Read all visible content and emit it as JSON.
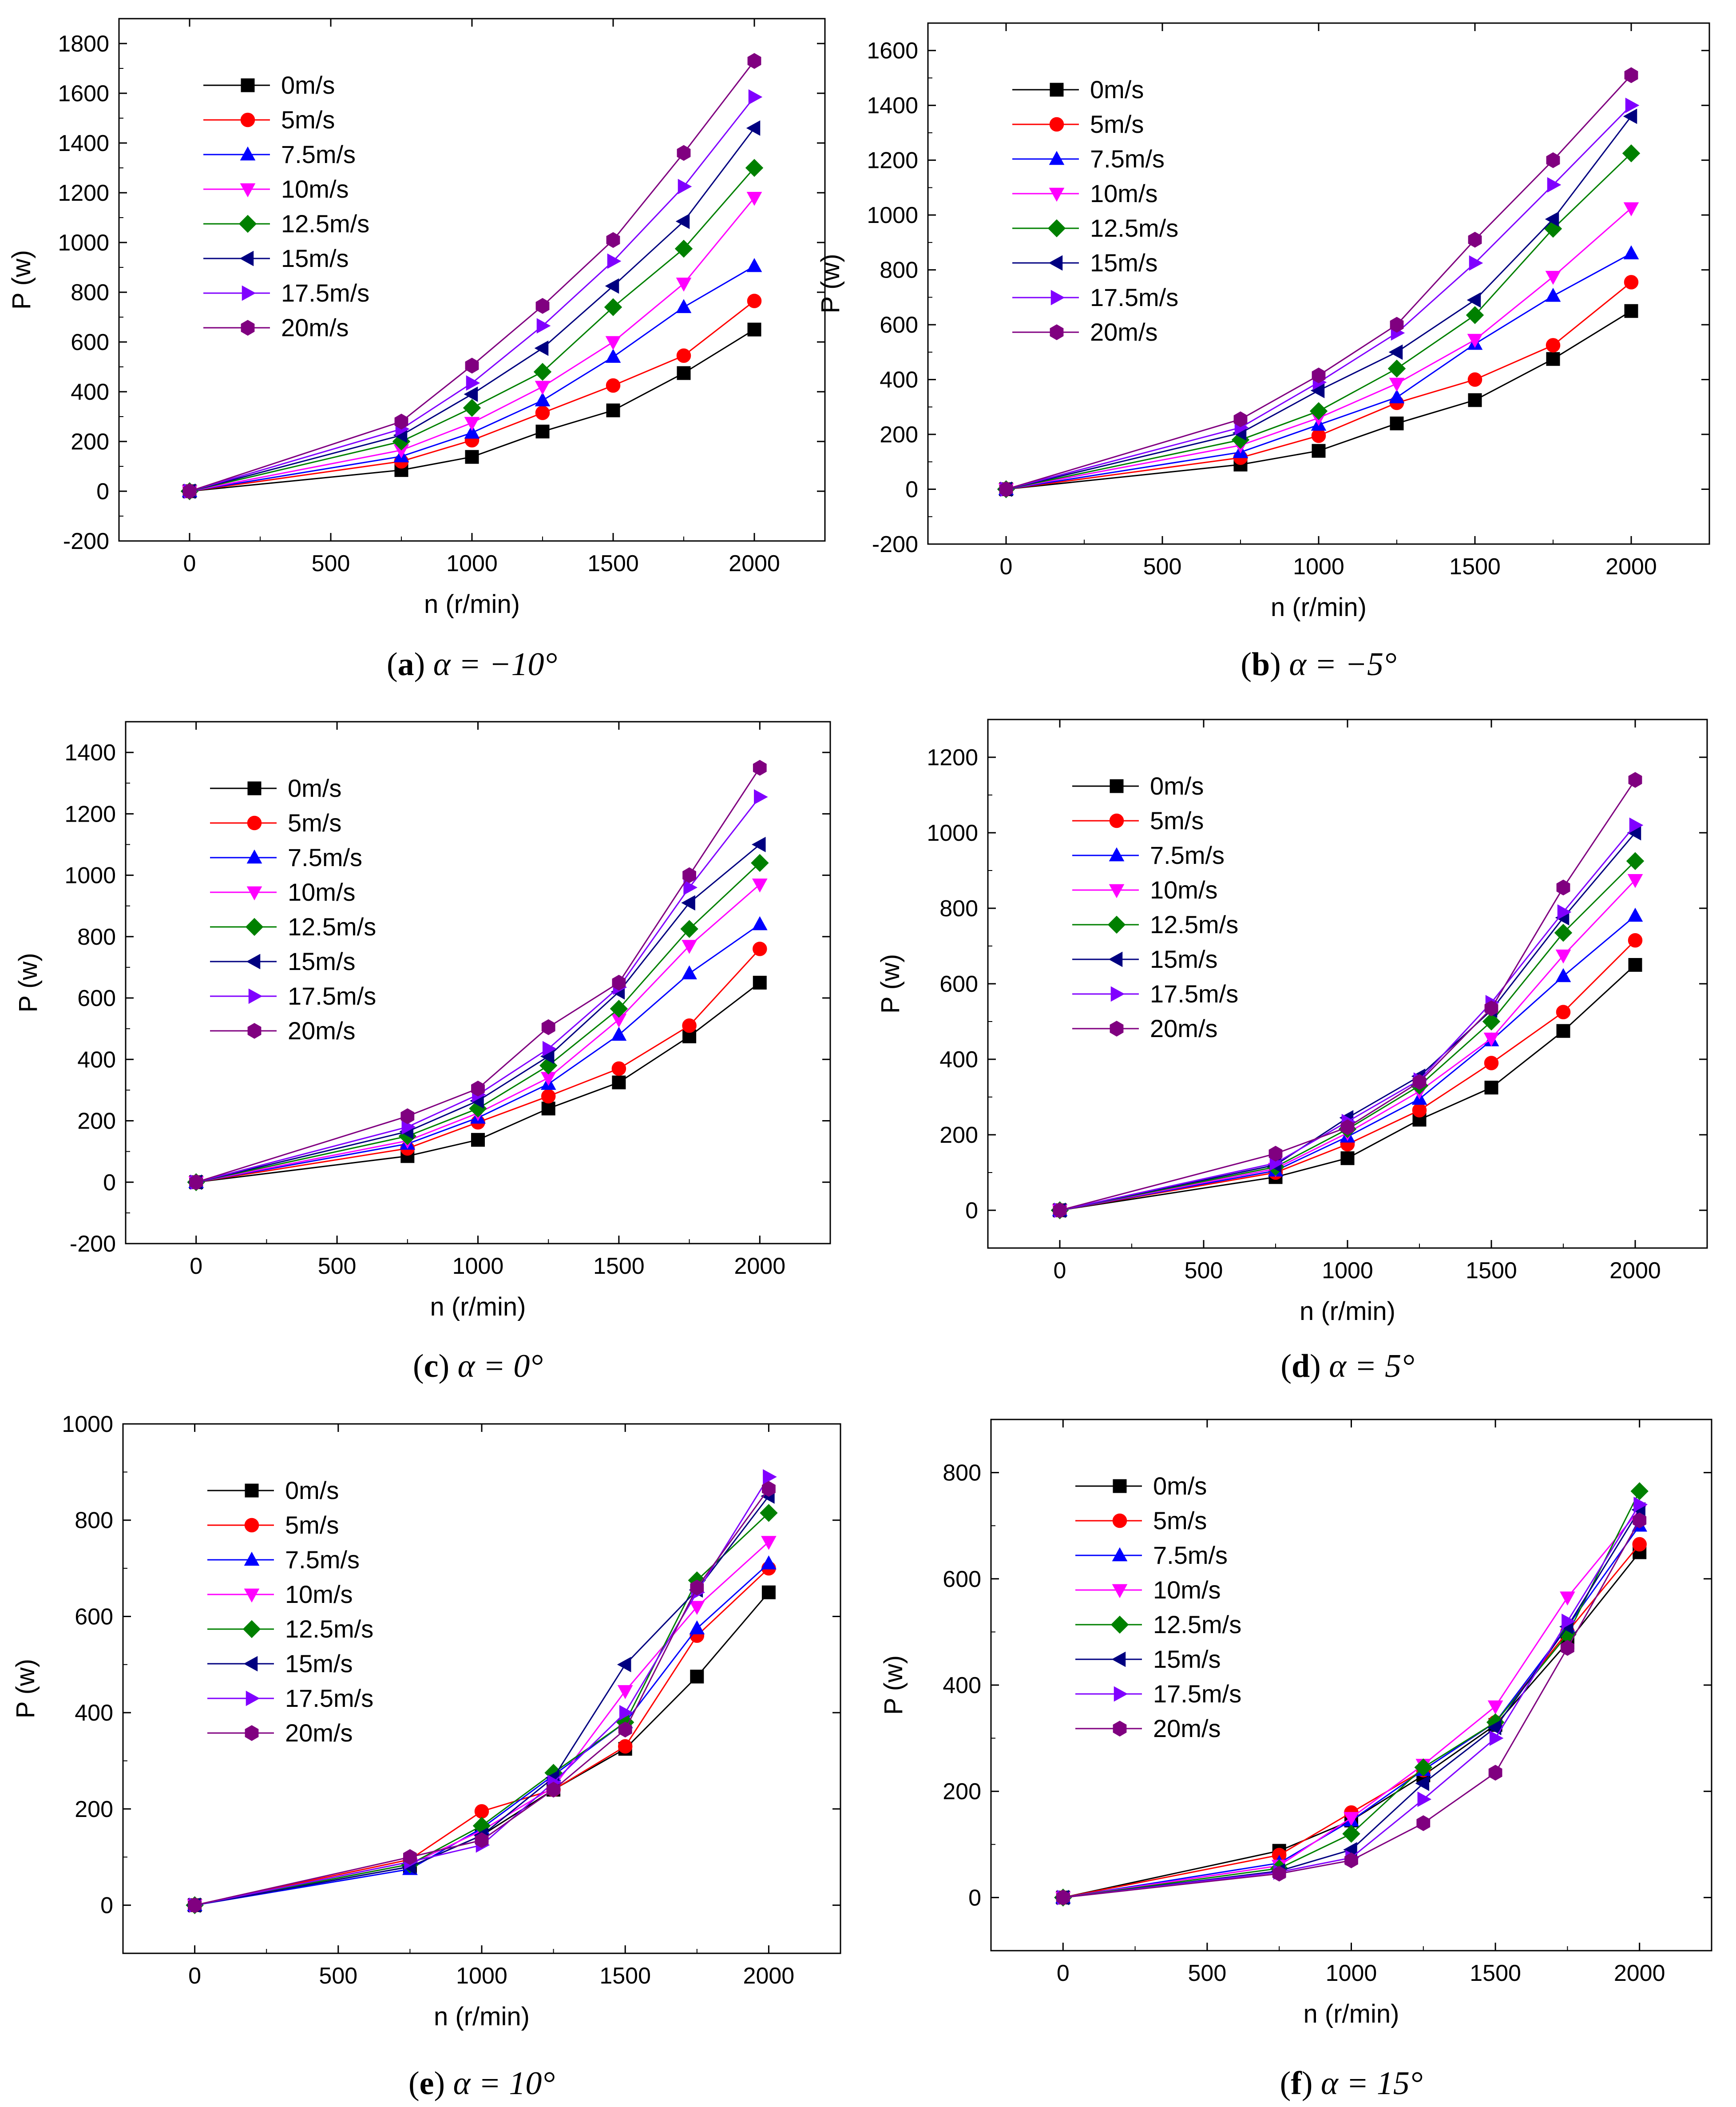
{
  "figure": {
    "series_styles": [
      {
        "name": "0m/s",
        "color": "#000000",
        "marker": "square"
      },
      {
        "name": "5m/s",
        "color": "#ff0000",
        "marker": "circle"
      },
      {
        "name": "7.5m/s",
        "color": "#0000ff",
        "marker": "triangle-up"
      },
      {
        "name": "10m/s",
        "color": "#ff00ff",
        "marker": "triangle-down"
      },
      {
        "name": "12.5m/s",
        "color": "#008000",
        "marker": "diamond"
      },
      {
        "name": "15m/s",
        "color": "#000080",
        "marker": "triangle-left"
      },
      {
        "name": "17.5m/s",
        "color": "#8000ff",
        "marker": "triangle-right"
      },
      {
        "name": "20m/s",
        "color": "#800080",
        "marker": "hexagon"
      }
    ]
  },
  "chart_data": [
    {
      "type": "line",
      "caption": {
        "letter": "a",
        "text": " α = −10°"
      },
      "xlabel": "n (r/min)",
      "ylabel": "P (w)",
      "xlim": [
        -250,
        2250
      ],
      "ylim": [
        -200,
        1900
      ],
      "xticks": [
        0,
        500,
        1000,
        1500,
        2000
      ],
      "yticks": [
        -200,
        0,
        200,
        400,
        600,
        800,
        1000,
        1200,
        1400,
        1600,
        1800
      ],
      "x": [
        0,
        750,
        1000,
        1250,
        1500,
        1750,
        2000
      ],
      "legend": "top-left",
      "series": [
        {
          "name": "0m/s",
          "values": [
            0,
            85,
            138,
            240,
            325,
            475,
            650
          ]
        },
        {
          "name": "5m/s",
          "values": [
            0,
            120,
            205,
            315,
            425,
            545,
            765
          ]
        },
        {
          "name": "7.5m/s",
          "values": [
            0,
            140,
            235,
            365,
            540,
            740,
            905
          ]
        },
        {
          "name": "10m/s",
          "values": [
            0,
            165,
            275,
            420,
            600,
            835,
            1180
          ]
        },
        {
          "name": "12.5m/s",
          "values": [
            0,
            200,
            335,
            480,
            740,
            975,
            1300
          ]
        },
        {
          "name": "15m/s",
          "values": [
            0,
            225,
            390,
            575,
            825,
            1085,
            1460
          ]
        },
        {
          "name": "17.5m/s",
          "values": [
            0,
            250,
            435,
            665,
            925,
            1225,
            1585
          ]
        },
        {
          "name": "20m/s",
          "values": [
            0,
            280,
            505,
            745,
            1010,
            1360,
            1730
          ]
        }
      ]
    },
    {
      "type": "line",
      "caption": {
        "letter": "b",
        "text": " α = −5°"
      },
      "xlabel": "n (r/min)",
      "ylabel": "P (w)",
      "xlim": [
        -250,
        2250
      ],
      "ylim": [
        -200,
        1700
      ],
      "xticks": [
        0,
        500,
        1000,
        1500,
        2000
      ],
      "yticks": [
        -200,
        0,
        200,
        400,
        600,
        800,
        1000,
        1200,
        1400,
        1600
      ],
      "x": [
        0,
        750,
        1000,
        1250,
        1500,
        1750,
        2000
      ],
      "legend": "top-left",
      "series": [
        {
          "name": "0m/s",
          "values": [
            0,
            90,
            140,
            240,
            325,
            475,
            650
          ]
        },
        {
          "name": "5m/s",
          "values": [
            0,
            115,
            195,
            315,
            400,
            525,
            755
          ]
        },
        {
          "name": "7.5m/s",
          "values": [
            0,
            135,
            235,
            335,
            530,
            705,
            860
          ]
        },
        {
          "name": "10m/s",
          "values": [
            0,
            160,
            260,
            385,
            545,
            775,
            1025
          ]
        },
        {
          "name": "12.5m/s",
          "values": [
            0,
            180,
            285,
            440,
            635,
            950,
            1225
          ]
        },
        {
          "name": "15m/s",
          "values": [
            0,
            205,
            360,
            500,
            690,
            985,
            1360
          ]
        },
        {
          "name": "17.5m/s",
          "values": [
            0,
            225,
            390,
            570,
            825,
            1110,
            1400
          ]
        },
        {
          "name": "20m/s",
          "values": [
            0,
            255,
            415,
            600,
            910,
            1200,
            1510
          ]
        }
      ]
    },
    {
      "type": "line",
      "caption": {
        "letter": "c",
        "text": " α = 0°"
      },
      "xlabel": "n (r/min)",
      "ylabel": "P (w)",
      "xlim": [
        -250,
        2250
      ],
      "ylim": [
        -200,
        1500
      ],
      "xticks": [
        0,
        500,
        1000,
        1500,
        2000
      ],
      "yticks": [
        -200,
        0,
        200,
        400,
        600,
        800,
        1000,
        1200,
        1400
      ],
      "x": [
        0,
        750,
        1000,
        1250,
        1500,
        1750,
        2000
      ],
      "legend": "top-left",
      "series": [
        {
          "name": "0m/s",
          "values": [
            0,
            85,
            138,
            240,
            325,
            475,
            650
          ]
        },
        {
          "name": "5m/s",
          "values": [
            0,
            110,
            195,
            280,
            370,
            510,
            760
          ]
        },
        {
          "name": "7.5m/s",
          "values": [
            0,
            125,
            210,
            320,
            480,
            680,
            840
          ]
        },
        {
          "name": "10m/s",
          "values": [
            0,
            135,
            225,
            340,
            530,
            770,
            970
          ]
        },
        {
          "name": "12.5m/s",
          "values": [
            0,
            150,
            240,
            380,
            565,
            825,
            1040
          ]
        },
        {
          "name": "15m/s",
          "values": [
            0,
            165,
            265,
            410,
            620,
            910,
            1100
          ]
        },
        {
          "name": "17.5m/s",
          "values": [
            0,
            180,
            285,
            435,
            635,
            960,
            1255
          ]
        },
        {
          "name": "20m/s",
          "values": [
            0,
            215,
            305,
            505,
            650,
            1000,
            1350
          ]
        }
      ]
    },
    {
      "type": "line",
      "caption": {
        "letter": "d",
        "text": " α = 5°"
      },
      "xlabel": "n (r/min)",
      "ylabel": "P (w)",
      "xlim": [
        -250,
        2250
      ],
      "ylim": [
        -100,
        1300
      ],
      "xticks": [
        0,
        500,
        1000,
        1500,
        2000
      ],
      "yticks": [
        0,
        200,
        400,
        600,
        800,
        1000,
        1200
      ],
      "x": [
        0,
        750,
        1000,
        1250,
        1500,
        1750,
        2000
      ],
      "legend": "top-left",
      "series": [
        {
          "name": "0m/s",
          "values": [
            0,
            88,
            138,
            240,
            325,
            475,
            650
          ]
        },
        {
          "name": "5m/s",
          "values": [
            0,
            100,
            175,
            265,
            390,
            525,
            715
          ]
        },
        {
          "name": "7.5m/s",
          "values": [
            0,
            105,
            195,
            295,
            450,
            620,
            780
          ]
        },
        {
          "name": "10m/s",
          "values": [
            0,
            110,
            205,
            315,
            455,
            675,
            875
          ]
        },
        {
          "name": "12.5m/s",
          "values": [
            0,
            115,
            215,
            330,
            500,
            735,
            925
          ]
        },
        {
          "name": "15m/s",
          "values": [
            0,
            120,
            245,
            355,
            530,
            775,
            1000
          ]
        },
        {
          "name": "17.5m/s",
          "values": [
            0,
            125,
            235,
            345,
            550,
            790,
            1020
          ]
        },
        {
          "name": "20m/s",
          "values": [
            0,
            150,
            220,
            340,
            535,
            855,
            1140
          ]
        }
      ]
    },
    {
      "type": "line",
      "caption": {
        "letter": "e",
        "text": " α = 10°"
      },
      "xlabel": "n (r/min)",
      "ylabel": "P (w)",
      "xlim": [
        -250,
        2250
      ],
      "ylim": [
        -100,
        1000
      ],
      "xticks": [
        0,
        500,
        1000,
        1500,
        2000
      ],
      "yticks": [
        0,
        200,
        400,
        600,
        800,
        1000
      ],
      "x": [
        0,
        750,
        1000,
        1250,
        1500,
        1750,
        2000
      ],
      "legend": "top-left",
      "series": [
        {
          "name": "0m/s",
          "values": [
            0,
            80,
            145,
            240,
            325,
            475,
            650
          ]
        },
        {
          "name": "5m/s",
          "values": [
            0,
            95,
            195,
            240,
            330,
            560,
            700
          ]
        },
        {
          "name": "7.5m/s",
          "values": [
            0,
            75,
            160,
            270,
            380,
            575,
            710
          ]
        },
        {
          "name": "10m/s",
          "values": [
            0,
            85,
            155,
            245,
            445,
            620,
            755
          ]
        },
        {
          "name": "12.5m/s",
          "values": [
            0,
            85,
            165,
            275,
            380,
            675,
            815
          ]
        },
        {
          "name": "15m/s",
          "values": [
            0,
            80,
            145,
            265,
            500,
            655,
            850
          ]
        },
        {
          "name": "17.5m/s",
          "values": [
            0,
            90,
            125,
            255,
            400,
            650,
            890
          ]
        },
        {
          "name": "20m/s",
          "values": [
            0,
            100,
            135,
            240,
            365,
            660,
            865
          ]
        }
      ]
    },
    {
      "type": "line",
      "caption": {
        "letter": "f",
        "text": " α = 15°"
      },
      "xlabel": "n (r/min)",
      "ylabel": "P (w)",
      "xlim": [
        -250,
        2250
      ],
      "ylim": [
        -100,
        900
      ],
      "xticks": [
        0,
        500,
        1000,
        1500,
        2000
      ],
      "yticks": [
        0,
        200,
        400,
        600,
        800
      ],
      "x": [
        0,
        750,
        1000,
        1250,
        1500,
        1750,
        2000
      ],
      "legend": "top-left",
      "series": [
        {
          "name": "0m/s",
          "values": [
            0,
            88,
            145,
            230,
            325,
            480,
            650
          ]
        },
        {
          "name": "5m/s",
          "values": [
            0,
            80,
            160,
            240,
            330,
            500,
            665
          ]
        },
        {
          "name": "7.5m/s",
          "values": [
            0,
            65,
            145,
            240,
            330,
            510,
            700
          ]
        },
        {
          "name": "10m/s",
          "values": [
            0,
            60,
            150,
            250,
            360,
            565,
            730
          ]
        },
        {
          "name": "12.5m/s",
          "values": [
            0,
            55,
            120,
            245,
            330,
            495,
            765
          ]
        },
        {
          "name": "15m/s",
          "values": [
            0,
            50,
            90,
            215,
            320,
            510,
            730
          ]
        },
        {
          "name": "17.5m/s",
          "values": [
            0,
            48,
            75,
            185,
            300,
            520,
            740
          ]
        },
        {
          "name": "20m/s",
          "values": [
            0,
            45,
            70,
            140,
            235,
            470,
            710
          ]
        }
      ]
    }
  ]
}
